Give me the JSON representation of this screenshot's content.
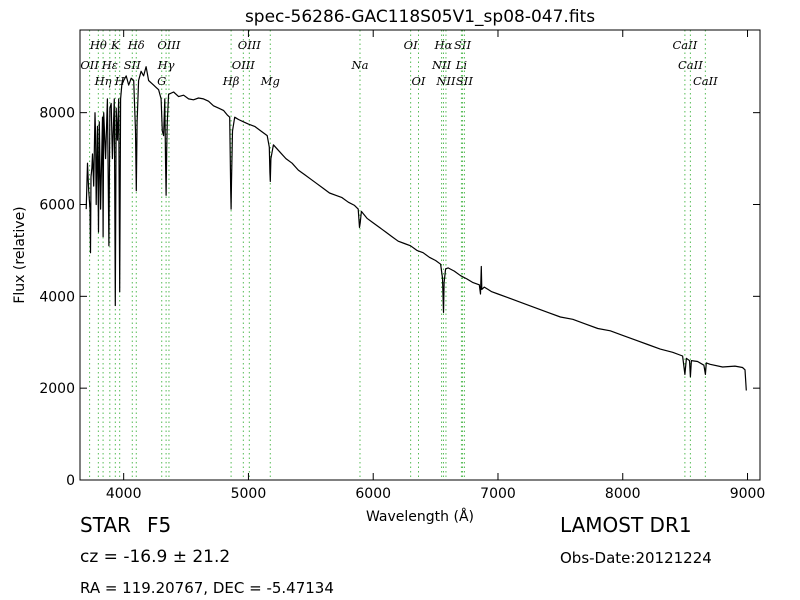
{
  "chart_data": {
    "type": "line",
    "title": "spec-56286-GAC118S05V1_sp08-047.fits",
    "xlabel": "Wavelength (Å)",
    "ylabel": "Flux (relative)",
    "xlim": [
      3650,
      9100
    ],
    "ylim": [
      0,
      9800
    ],
    "xticks": [
      4000,
      5000,
      6000,
      7000,
      8000,
      9000
    ],
    "yticks": [
      0,
      2000,
      4000,
      6000,
      8000
    ],
    "grid": false,
    "line_color": "#000000",
    "marker_color": "#55bb55",
    "series": [
      {
        "x": [
          3700,
          3710,
          3720,
          3730,
          3734,
          3738,
          3745,
          3750,
          3760,
          3770,
          3775,
          3780,
          3790,
          3798,
          3805,
          3815,
          3830,
          3835,
          3840,
          3855,
          3870,
          3882,
          3890,
          3900,
          3910,
          3925,
          3933,
          3940,
          3950,
          3960,
          3968,
          3975,
          3985,
          4000,
          4020,
          4040,
          4060,
          4080,
          4095,
          4101,
          4108,
          4120,
          4140,
          4160,
          4180,
          4200,
          4220,
          4240,
          4260,
          4280,
          4300,
          4310,
          4320,
          4330,
          4335,
          4340,
          4345,
          4350,
          4360,
          4400,
          4440,
          4480,
          4520,
          4560,
          4600,
          4640,
          4680,
          4720,
          4760,
          4800,
          4830,
          4850,
          4858,
          4861,
          4864,
          4872,
          4890,
          4920,
          4960,
          5000,
          5050,
          5100,
          5150,
          5167,
          5172,
          5175,
          5180,
          5200,
          5250,
          5300,
          5350,
          5400,
          5450,
          5500,
          5550,
          5600,
          5650,
          5700,
          5750,
          5800,
          5850,
          5880,
          5890,
          5896,
          5905,
          5950,
          6000,
          6050,
          6100,
          6150,
          6200,
          6250,
          6300,
          6350,
          6400,
          6450,
          6500,
          6540,
          6555,
          6563,
          6568,
          6580,
          6600,
          6650,
          6700,
          6750,
          6800,
          6850,
          6860,
          6866,
          6870,
          6890,
          6920,
          6950,
          7000,
          7100,
          7200,
          7300,
          7400,
          7500,
          7600,
          7700,
          7800,
          7900,
          8000,
          8100,
          8200,
          8300,
          8400,
          8480,
          8498,
          8510,
          8535,
          8542,
          8550,
          8600,
          8650,
          8662,
          8670,
          8700,
          8800,
          8900,
          8960,
          8980,
          8990
        ],
        "y": [
          5900,
          6900,
          6300,
          5900,
          4950,
          6600,
          6800,
          7100,
          6400,
          8000,
          7500,
          6000,
          7700,
          5400,
          7800,
          5900,
          7900,
          5300,
          8000,
          7000,
          8300,
          5100,
          8100,
          8200,
          7000,
          8300,
          3800,
          8100,
          7400,
          8300,
          4100,
          8300,
          8600,
          8700,
          8800,
          8600,
          8750,
          8700,
          7600,
          6300,
          7800,
          8700,
          8900,
          8800,
          9000,
          8700,
          8650,
          8600,
          8550,
          8500,
          8300,
          7600,
          7500,
          8300,
          7000,
          6200,
          7200,
          7800,
          8400,
          8450,
          8350,
          8380,
          8300,
          8280,
          8320,
          8300,
          8250,
          8150,
          8100,
          8050,
          7950,
          7900,
          6300,
          5900,
          6500,
          7600,
          7900,
          7850,
          7800,
          7750,
          7700,
          7600,
          7500,
          7250,
          6700,
          6500,
          7000,
          7300,
          7150,
          7000,
          6900,
          6750,
          6650,
          6550,
          6450,
          6350,
          6250,
          6200,
          6150,
          6050,
          5980,
          5900,
          5500,
          5600,
          5850,
          5700,
          5600,
          5500,
          5400,
          5300,
          5200,
          5150,
          5100,
          5000,
          4950,
          4850,
          4780,
          4700,
          4400,
          3650,
          4300,
          4600,
          4620,
          4550,
          4450,
          4380,
          4300,
          4250,
          4050,
          4650,
          4150,
          4200,
          4150,
          4100,
          4050,
          3950,
          3850,
          3750,
          3650,
          3550,
          3500,
          3400,
          3300,
          3250,
          3150,
          3050,
          2950,
          2850,
          2780,
          2700,
          2300,
          2650,
          2600,
          2250,
          2600,
          2580,
          2500,
          2300,
          2550,
          2520,
          2460,
          2480,
          2450,
          2400,
          1950
        ]
      }
    ],
    "line_markers": [
      {
        "label": "OII",
        "x": 3727,
        "row": 2
      },
      {
        "label": "Hθ",
        "x": 3797,
        "row": 1
      },
      {
        "label": "Hη",
        "x": 3835,
        "row": 3
      },
      {
        "label": "Hε",
        "x": 3889,
        "row": 2
      },
      {
        "label": "K",
        "x": 3933,
        "row": 1
      },
      {
        "label": "SII",
        "x": 4069,
        "row": 2
      },
      {
        "label": "H",
        "x": 3968,
        "row": 3
      },
      {
        "label": "Hδ",
        "x": 4101,
        "row": 1
      },
      {
        "label": "Hγ",
        "x": 4340,
        "row": 2
      },
      {
        "label": "OIII",
        "x": 4363,
        "row": 1
      },
      {
        "label": "G",
        "x": 4305,
        "row": 3
      },
      {
        "label": "Hβ",
        "x": 4861,
        "row": 3
      },
      {
        "label": "OIII",
        "x": 4959,
        "row": 2
      },
      {
        "label": "OIII",
        "x": 5007,
        "row": 1
      },
      {
        "label": "Mg",
        "x": 5175,
        "row": 3
      },
      {
        "label": "Na",
        "x": 5894,
        "row": 2
      },
      {
        "label": "OI",
        "x": 6300,
        "row": 1
      },
      {
        "label": "OI",
        "x": 6363,
        "row": 3
      },
      {
        "label": "Hα",
        "x": 6563,
        "row": 1
      },
      {
        "label": "NII",
        "x": 6548,
        "row": 2
      },
      {
        "label": "NII",
        "x": 6583,
        "row": 3
      },
      {
        "label": "SII",
        "x": 6716,
        "row": 1
      },
      {
        "label": "Li",
        "x": 6707,
        "row": 2
      },
      {
        "label": "SII",
        "x": 6731,
        "row": 3
      },
      {
        "label": "CaII",
        "x": 8498,
        "row": 1
      },
      {
        "label": "CaII",
        "x": 8542,
        "row": 2
      },
      {
        "label": "CaII",
        "x": 8662,
        "row": 3
      }
    ]
  },
  "info": {
    "object_class": "STAR",
    "subclass": "F5",
    "cz": "cz = -16.9 ± 21.2",
    "radec": "RA = 119.20767, DEC = -5.47134",
    "survey": "LAMOST DR1",
    "obs_date": "Obs-Date:20121224"
  }
}
